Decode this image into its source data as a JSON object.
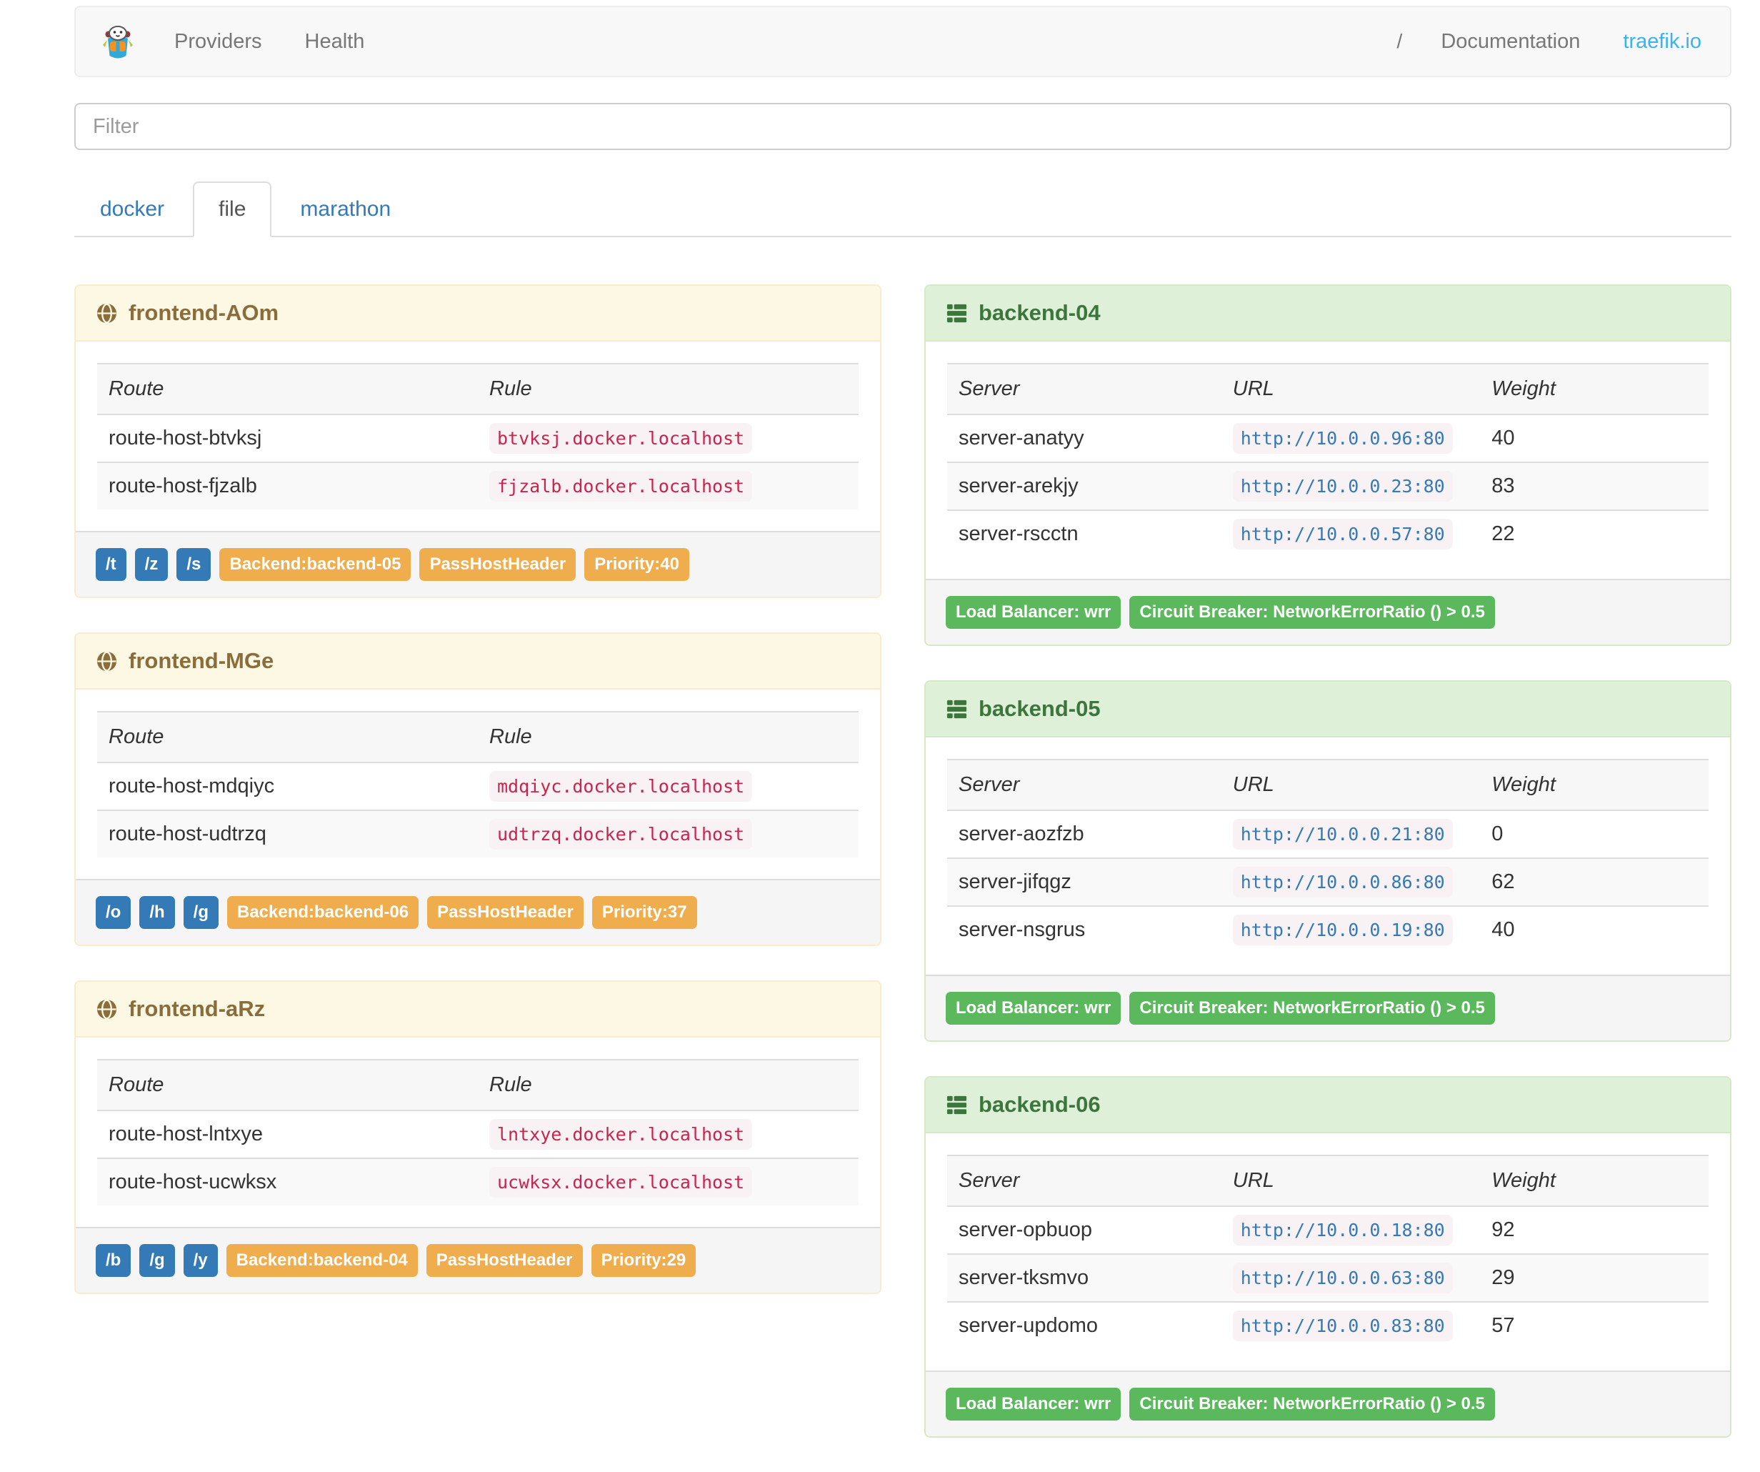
{
  "navbar": {
    "logo": "traefik-mascot-icon",
    "links": [
      "Providers",
      "Health"
    ],
    "separator": "/",
    "documentation": "Documentation",
    "site": "traefik.io"
  },
  "filter": {
    "placeholder": "Filter",
    "value": ""
  },
  "tabs": [
    {
      "label": "docker",
      "active": false
    },
    {
      "label": "file",
      "active": true
    },
    {
      "label": "marathon",
      "active": false
    }
  ],
  "frontends": [
    {
      "title": "frontend-AOm",
      "icon": "globe-icon",
      "columns": [
        "Route",
        "Rule"
      ],
      "rows": [
        {
          "route": "route-host-btvksj",
          "rule": "btvksj.docker.localhost"
        },
        {
          "route": "route-host-fjzalb",
          "rule": "fjzalb.docker.localhost"
        }
      ],
      "entry_points": [
        "/t",
        "/z",
        "/s"
      ],
      "badges": [
        "Backend:backend-05",
        "PassHostHeader",
        "Priority:40"
      ]
    },
    {
      "title": "frontend-MGe",
      "icon": "globe-icon",
      "columns": [
        "Route",
        "Rule"
      ],
      "rows": [
        {
          "route": "route-host-mdqiyc",
          "rule": "mdqiyc.docker.localhost"
        },
        {
          "route": "route-host-udtrzq",
          "rule": "udtrzq.docker.localhost"
        }
      ],
      "entry_points": [
        "/o",
        "/h",
        "/g"
      ],
      "badges": [
        "Backend:backend-06",
        "PassHostHeader",
        "Priority:37"
      ]
    },
    {
      "title": "frontend-aRz",
      "icon": "globe-icon",
      "columns": [
        "Route",
        "Rule"
      ],
      "rows": [
        {
          "route": "route-host-lntxye",
          "rule": "lntxye.docker.localhost"
        },
        {
          "route": "route-host-ucwksx",
          "rule": "ucwksx.docker.localhost"
        }
      ],
      "entry_points": [
        "/b",
        "/g",
        "/y"
      ],
      "badges": [
        "Backend:backend-04",
        "PassHostHeader",
        "Priority:29"
      ]
    }
  ],
  "backends": [
    {
      "title": "backend-04",
      "icon": "server-icon",
      "columns": [
        "Server",
        "URL",
        "Weight"
      ],
      "rows": [
        {
          "server": "server-anatyy",
          "url": "http://10.0.0.96:80",
          "weight": "40"
        },
        {
          "server": "server-arekjy",
          "url": "http://10.0.0.23:80",
          "weight": "83"
        },
        {
          "server": "server-rscctn",
          "url": "http://10.0.0.57:80",
          "weight": "22"
        }
      ],
      "badges": [
        "Load Balancer: wrr",
        "Circuit Breaker: NetworkErrorRatio () > 0.5"
      ]
    },
    {
      "title": "backend-05",
      "icon": "server-icon",
      "columns": [
        "Server",
        "URL",
        "Weight"
      ],
      "rows": [
        {
          "server": "server-aozfzb",
          "url": "http://10.0.0.21:80",
          "weight": "0"
        },
        {
          "server": "server-jifqgz",
          "url": "http://10.0.0.86:80",
          "weight": "62"
        },
        {
          "server": "server-nsgrus",
          "url": "http://10.0.0.19:80",
          "weight": "40"
        }
      ],
      "badges": [
        "Load Balancer: wrr",
        "Circuit Breaker: NetworkErrorRatio () > 0.5"
      ]
    },
    {
      "title": "backend-06",
      "icon": "server-icon",
      "columns": [
        "Server",
        "URL",
        "Weight"
      ],
      "rows": [
        {
          "server": "server-opbuop",
          "url": "http://10.0.0.18:80",
          "weight": "92"
        },
        {
          "server": "server-tksmvo",
          "url": "http://10.0.0.63:80",
          "weight": "29"
        },
        {
          "server": "server-updomo",
          "url": "http://10.0.0.83:80",
          "weight": "57"
        }
      ],
      "badges": [
        "Load Balancer: wrr",
        "Circuit Breaker: NetworkErrorRatio () > 0.5"
      ]
    }
  ],
  "colors": {
    "warning_header_bg": "#fcf8e3",
    "warning_border": "#faebcc",
    "warning_text": "#8a6d3b",
    "success_header_bg": "#dff0d8",
    "success_border": "#d6e9c6",
    "success_text": "#3c763d",
    "label_primary": "#337ab7",
    "label_warning": "#f0ad4e",
    "label_success": "#5cb85c",
    "code_text": "#c7254e",
    "code_bg": "#f9f2f4",
    "url_link": "#337ab7",
    "traefik_link": "#3bb3ef",
    "nav_link": "#777777",
    "tab_link": "#337ab7"
  }
}
